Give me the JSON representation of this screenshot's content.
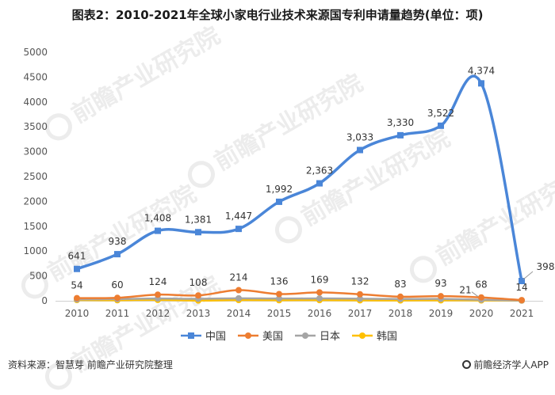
{
  "title": "图表2：2010-2021年全球小家电行业技术来源国专利申请量趋势(单位：项)",
  "watermark_text": "前瞻产业研究院",
  "source": "资料来源：智慧芽 前瞻产业研究院整理",
  "brand": "前瞻经济学人APP",
  "chart_data": {
    "type": "line",
    "x": [
      "2010",
      "2011",
      "2012",
      "2013",
      "2014",
      "2015",
      "2016",
      "2017",
      "2018",
      "2019",
      "2020",
      "2021"
    ],
    "ylim": [
      0,
      5000
    ],
    "yticks": [
      "0",
      "500",
      "1000",
      "1500",
      "2000",
      "2500",
      "3000",
      "3500",
      "4000",
      "4500",
      "5000"
    ],
    "legend_position": "bottom",
    "grid": false,
    "series": [
      {
        "name": "中国",
        "color": "#4a86d8",
        "marker": "square",
        "values": [
          641,
          938,
          1408,
          1381,
          1447,
          1992,
          2363,
          3033,
          3330,
          3522,
          4374,
          398
        ],
        "labels": [
          "641",
          "938",
          "1,408",
          "1,381",
          "1,447",
          "1,992",
          "2,363",
          "3,033",
          "3,330",
          "3,522",
          "4,374",
          "398"
        ]
      },
      {
        "name": "美国",
        "color": "#ed7d31",
        "marker": "circle",
        "values": [
          54,
          60,
          124,
          108,
          214,
          136,
          169,
          132,
          83,
          93,
          68,
          14
        ],
        "labels": [
          "54",
          "60",
          "124",
          "108",
          "214",
          "136",
          "169",
          "132",
          "83",
          "93",
          "68",
          "14"
        ]
      },
      {
        "name": "日本",
        "color": "#a5a5a5",
        "marker": "circle",
        "values": [
          30,
          35,
          45,
          40,
          50,
          45,
          48,
          42,
          35,
          38,
          21,
          5
        ],
        "labels": [
          "",
          "",
          "",
          "",
          "",
          "",
          "",
          "",
          "",
          "",
          "21",
          ""
        ]
      },
      {
        "name": "韩国",
        "color": "#ffc000",
        "marker": "circle",
        "values": [
          15,
          12,
          18,
          5,
          15,
          12,
          14,
          10,
          8,
          10,
          8,
          3
        ],
        "labels": []
      }
    ]
  }
}
